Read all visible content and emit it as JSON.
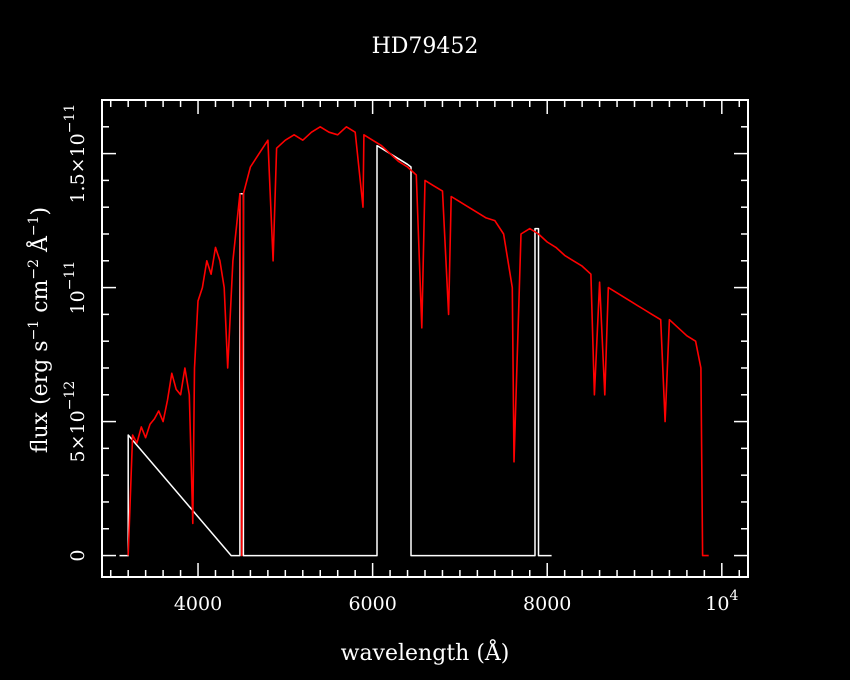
{
  "chart_data": {
    "type": "line",
    "title": "HD79452",
    "xlabel": "wavelength (Å)",
    "ylabel": {
      "prefix": "flux (erg s",
      "exp1": "−1",
      "mid1": " cm",
      "exp2": "−2",
      "mid2": " Å",
      "exp3": "−1",
      "suffix": ")"
    },
    "xlim": [
      2900,
      10300
    ],
    "ylim": [
      -8e-13,
      1.7e-11
    ],
    "x_tick_labels": [
      {
        "value": 4000,
        "label": "4000"
      },
      {
        "value": 6000,
        "label": "6000"
      },
      {
        "value": 8000,
        "label": "8000"
      },
      {
        "value": 10000,
        "label": "10",
        "exp": "4"
      }
    ],
    "y_tick_labels": [
      {
        "value": 0,
        "label": "0"
      },
      {
        "value": 5e-12,
        "label": "5×10",
        "exp": "−12"
      },
      {
        "value": 1e-11,
        "label": "10",
        "exp": "−11"
      },
      {
        "value": 1.5e-11,
        "label": "1.5×10",
        "exp": "−11"
      }
    ],
    "series": [
      {
        "color": "#ff0000",
        "x": [
          3200,
          3250,
          3300,
          3350,
          3400,
          3450,
          3500,
          3550,
          3600,
          3650,
          3700,
          3750,
          3800,
          3850,
          3900,
          3940,
          3960,
          4000,
          4050,
          4100,
          4150,
          4200,
          4250,
          4300,
          4340,
          4400,
          4480,
          4500,
          4520,
          4600,
          4700,
          4800,
          4860,
          4900,
          5000,
          5100,
          5200,
          5300,
          5400,
          5500,
          5600,
          5700,
          5800,
          5890,
          5900,
          6000,
          6100,
          6200,
          6300,
          6400,
          6500,
          6563,
          6600,
          6700,
          6800,
          6870,
          6900,
          7000,
          7100,
          7200,
          7300,
          7400,
          7500,
          7600,
          7620,
          7700,
          7800,
          7900,
          8000,
          8100,
          8200,
          8300,
          8400,
          8500,
          8540,
          8600,
          8660,
          8700,
          8800,
          8900,
          9000,
          9100,
          9200,
          9300,
          9350,
          9400,
          9500,
          9600,
          9700,
          9760,
          9780,
          9800,
          9850
        ],
        "y": [
          0,
          4.5e-12,
          4.2e-12,
          4.8e-12,
          4.4e-12,
          4.9e-12,
          5.1e-12,
          5.4e-12,
          5e-12,
          5.8e-12,
          6.8e-12,
          6.2e-12,
          6e-12,
          7e-12,
          6e-12,
          1.2e-12,
          7e-12,
          9.5e-12,
          1e-11,
          1.1e-11,
          1.05e-11,
          1.15e-11,
          1.1e-11,
          1e-11,
          7e-12,
          1.1e-11,
          1.35e-11,
          0,
          1.35e-11,
          1.45e-11,
          1.5e-11,
          1.55e-11,
          1.1e-11,
          1.52e-11,
          1.55e-11,
          1.57e-11,
          1.55e-11,
          1.58e-11,
          1.6e-11,
          1.58e-11,
          1.57e-11,
          1.6e-11,
          1.58e-11,
          1.3e-11,
          1.57e-11,
          1.55e-11,
          1.53e-11,
          1.5e-11,
          1.47e-11,
          1.45e-11,
          1.42e-11,
          8.5e-12,
          1.4e-11,
          1.38e-11,
          1.36e-11,
          9e-12,
          1.34e-11,
          1.32e-11,
          1.3e-11,
          1.28e-11,
          1.26e-11,
          1.25e-11,
          1.2e-11,
          1e-11,
          3.5e-12,
          1.2e-11,
          1.22e-11,
          1.2e-11,
          1.17e-11,
          1.15e-11,
          1.12e-11,
          1.1e-11,
          1.08e-11,
          1.05e-11,
          6e-12,
          1.02e-11,
          6e-12,
          1e-11,
          9.8e-12,
          9.6e-12,
          9.4e-12,
          9.2e-12,
          9e-12,
          8.8e-12,
          5e-12,
          8.8e-12,
          8.5e-12,
          8.2e-12,
          8e-12,
          7e-12,
          0,
          0,
          0
        ]
      },
      {
        "color": "#ffffff",
        "x": [
          3100,
          3200,
          3200,
          4380,
          4480,
          4480,
          4520,
          4520,
          4870,
          5960,
          6050,
          6050,
          6400,
          6440,
          6440,
          6500,
          7700,
          7860,
          7860,
          7900,
          7900,
          8050
        ],
        "y": [
          0,
          0,
          4.5e-12,
          0,
          0,
          1.35e-11,
          1.35e-11,
          0,
          0,
          0,
          0,
          1.53e-11,
          1.46e-11,
          1.45e-11,
          0,
          0,
          0,
          0,
          1.22e-11,
          1.22e-11,
          0,
          0
        ]
      }
    ]
  }
}
